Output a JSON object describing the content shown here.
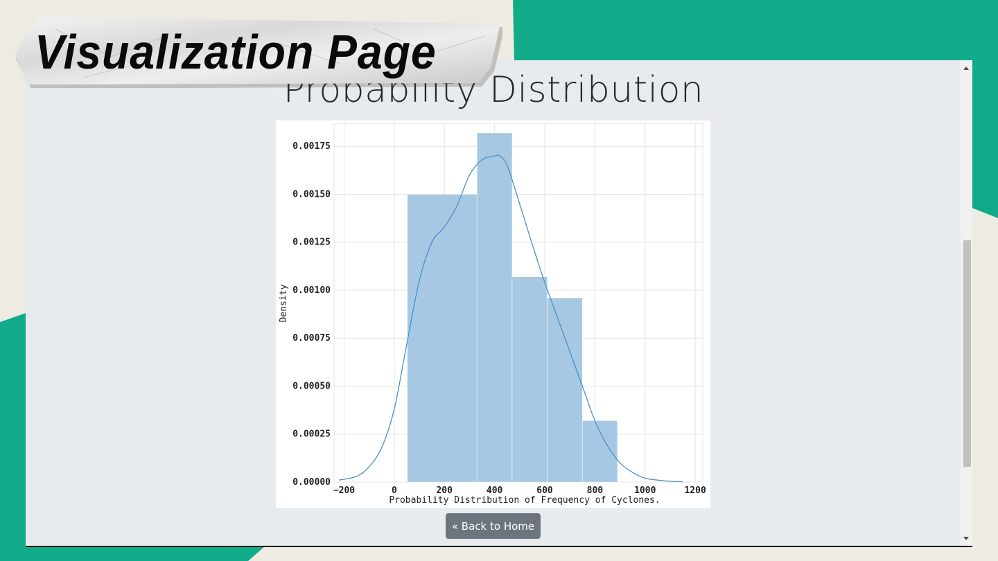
{
  "banner": {
    "title": "Visualization Page"
  },
  "page": {
    "heading": "Probability Distribution"
  },
  "back_button": {
    "label": "« Back to Home"
  },
  "colors": {
    "slide_background": "#eeebe3",
    "accent_green": "#12ab8a",
    "frame_background": "#e8ebee",
    "bar_fill": "#a6c8e2",
    "kde_line": "#4a90c8",
    "button": "#6c757d"
  },
  "chart_data": {
    "type": "bar",
    "subtype": "histogram-with-kde",
    "xlabel": "Probability Distribution of Frequency of Cyclones.",
    "ylabel": "Density",
    "xlim": [
      -240,
      1230
    ],
    "ylim": [
      0,
      0.00187
    ],
    "xticks": [
      -200,
      0,
      200,
      400,
      600,
      800,
      1000,
      1200
    ],
    "xtick_labels": [
      "−200",
      "0",
      "200",
      "400",
      "600",
      "800",
      "1000",
      "1200"
    ],
    "yticks": [
      0,
      0.00025,
      0.0005,
      0.00075,
      0.001,
      0.00125,
      0.0015,
      0.00175
    ],
    "ytick_labels": [
      "0.00000",
      "0.00025",
      "0.00050",
      "0.00075",
      "0.00100",
      "0.00125",
      "0.00150",
      "0.00175"
    ],
    "grid": true,
    "bins": [
      {
        "x0": 52,
        "x1": 330,
        "density": 0.0015
      },
      {
        "x0": 330,
        "x1": 470,
        "density": 0.00182
      },
      {
        "x0": 470,
        "x1": 610,
        "density": 0.00107
      },
      {
        "x0": 610,
        "x1": 750,
        "density": 0.00096
      },
      {
        "x0": 750,
        "x1": 890,
        "density": 0.00032
      }
    ],
    "kde": {
      "x": [
        -220,
        -150,
        -100,
        -50,
        0,
        50,
        100,
        150,
        200,
        250,
        300,
        350,
        400,
        420,
        450,
        500,
        550,
        600,
        650,
        700,
        750,
        800,
        850,
        900,
        950,
        1000,
        1050,
        1100,
        1150
      ],
      "y": [
        1e-05,
        3e-05,
        8e-05,
        0.00018,
        0.00038,
        0.00072,
        0.00105,
        0.00125,
        0.00133,
        0.00144,
        0.0016,
        0.00168,
        0.0017,
        0.0017,
        0.00165,
        0.00145,
        0.00124,
        0.00104,
        0.00086,
        0.00068,
        0.0005,
        0.00032,
        0.00019,
        0.0001,
        5e-05,
        2e-05,
        1e-05,
        4e-06,
        1e-06
      ]
    }
  }
}
